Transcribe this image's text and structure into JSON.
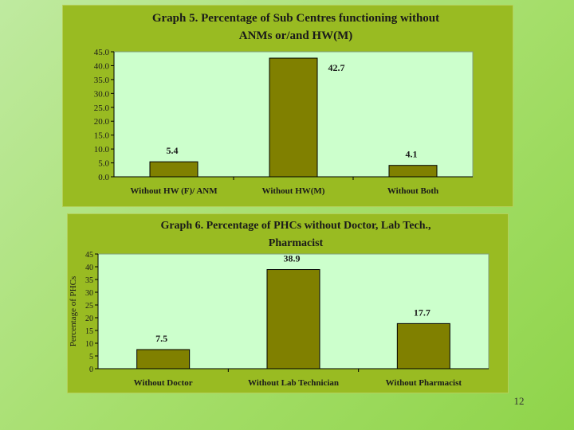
{
  "page_number": "12",
  "colors": {
    "panel_bg": "#99bb22",
    "plot_bg": "#ccffcc",
    "bar_fill": "#808000"
  },
  "chart_data": [
    {
      "type": "bar",
      "title_lines": [
        "Graph 5. Percentage of Sub Centres functioning without",
        "ANMs or/and HW(M)"
      ],
      "categories": [
        "Without HW (F)/ ANM",
        "Without HW(M)",
        "Without Both"
      ],
      "values": [
        5.4,
        42.7,
        4.1
      ],
      "data_labels": [
        "5.4",
        "42.7",
        "4.1"
      ],
      "ylim": [
        0,
        45
      ],
      "yticks": [
        "0.0",
        "5.0",
        "10.0",
        "15.0",
        "20.0",
        "25.0",
        "30.0",
        "35.0",
        "40.0",
        "45.0"
      ],
      "ylabel": "",
      "xlabel": "",
      "grid": false
    },
    {
      "type": "bar",
      "title_lines": [
        "Graph 6. Percentage of PHCs without Doctor, Lab Tech.,",
        "Pharmacist"
      ],
      "categories": [
        "Without Doctor",
        "Without Lab Technician",
        "Without Pharmacist"
      ],
      "values": [
        7.5,
        38.9,
        17.7
      ],
      "data_labels": [
        "7.5",
        "38.9",
        "17.7"
      ],
      "ylim": [
        0,
        45
      ],
      "yticks": [
        "0",
        "5",
        "10",
        "15",
        "20",
        "25",
        "30",
        "35",
        "40",
        "45"
      ],
      "ylabel": "Percentage of PHCs",
      "xlabel": "",
      "grid": false
    }
  ]
}
